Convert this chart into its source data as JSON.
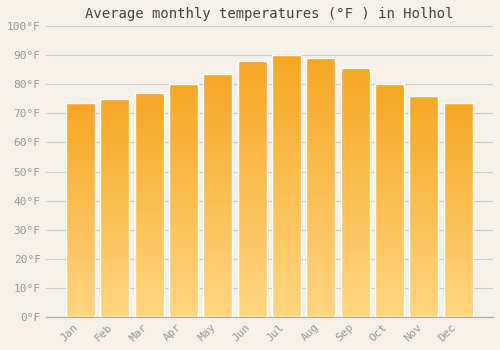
{
  "title": "Average monthly temperatures (°F ) in Holhol",
  "months": [
    "Jan",
    "Feb",
    "Mar",
    "Apr",
    "May",
    "Jun",
    "Jul",
    "Aug",
    "Sep",
    "Oct",
    "Nov",
    "Dec"
  ],
  "values": [
    73.5,
    75,
    77,
    80,
    83.5,
    88,
    90,
    89,
    85.5,
    80,
    76,
    73.5
  ],
  "bar_color_top": "#F5A623",
  "bar_color_bottom": "#FFD580",
  "bar_edge_color": "#FFFFFF",
  "background_color": "#F5F0E8",
  "grid_color": "#CCCCCC",
  "ylim": [
    0,
    100
  ],
  "yticks": [
    0,
    10,
    20,
    30,
    40,
    50,
    60,
    70,
    80,
    90,
    100
  ],
  "ytick_labels": [
    "0°F",
    "10°F",
    "20°F",
    "30°F",
    "40°F",
    "50°F",
    "60°F",
    "70°F",
    "80°F",
    "90°F",
    "100°F"
  ],
  "font_color": "#999999",
  "title_fontsize": 10,
  "tick_fontsize": 8,
  "bar_width": 0.85
}
